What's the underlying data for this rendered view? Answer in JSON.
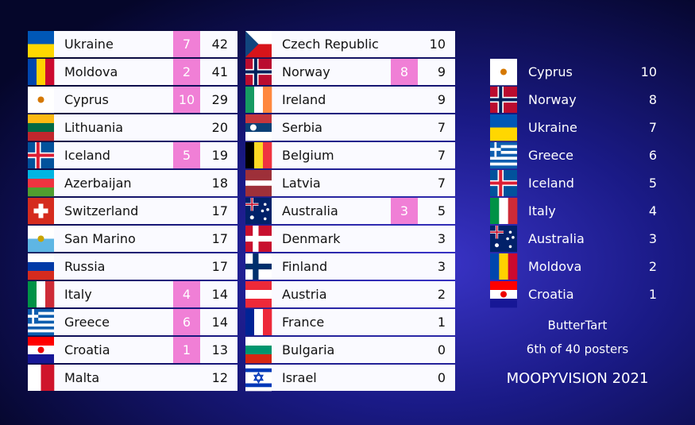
{
  "scoreboard": {
    "left": [
      {
        "country": "Ukraine",
        "points": 7,
        "total": 42
      },
      {
        "country": "Moldova",
        "points": 2,
        "total": 41
      },
      {
        "country": "Cyprus",
        "points": 10,
        "total": 29
      },
      {
        "country": "Lithuania",
        "points": null,
        "total": 20
      },
      {
        "country": "Iceland",
        "points": 5,
        "total": 19
      },
      {
        "country": "Azerbaijan",
        "points": null,
        "total": 18
      },
      {
        "country": "Switzerland",
        "points": null,
        "total": 17
      },
      {
        "country": "San Marino",
        "points": null,
        "total": 17
      },
      {
        "country": "Russia",
        "points": null,
        "total": 17
      },
      {
        "country": "Italy",
        "points": 4,
        "total": 14
      },
      {
        "country": "Greece",
        "points": 6,
        "total": 14
      },
      {
        "country": "Croatia",
        "points": 1,
        "total": 13
      },
      {
        "country": "Malta",
        "points": null,
        "total": 12
      }
    ],
    "middle": [
      {
        "country": "Czech Republic",
        "points": null,
        "total": 10
      },
      {
        "country": "Norway",
        "points": 8,
        "total": 9
      },
      {
        "country": "Ireland",
        "points": null,
        "total": 9
      },
      {
        "country": "Serbia",
        "points": null,
        "total": 7
      },
      {
        "country": "Belgium",
        "points": null,
        "total": 7
      },
      {
        "country": "Latvia",
        "points": null,
        "total": 7
      },
      {
        "country": "Australia",
        "points": 3,
        "total": 5
      },
      {
        "country": "Denmark",
        "points": null,
        "total": 3
      },
      {
        "country": "Finland",
        "points": null,
        "total": 3
      },
      {
        "country": "Austria",
        "points": null,
        "total": 2
      },
      {
        "country": "France",
        "points": null,
        "total": 1
      },
      {
        "country": "Bulgaria",
        "points": null,
        "total": 0
      },
      {
        "country": "Israel",
        "points": null,
        "total": 0
      }
    ],
    "votes": [
      {
        "country": "Cyprus",
        "points": 10
      },
      {
        "country": "Norway",
        "points": 8
      },
      {
        "country": "Ukraine",
        "points": 7
      },
      {
        "country": "Greece",
        "points": 6
      },
      {
        "country": "Iceland",
        "points": 5
      },
      {
        "country": "Italy",
        "points": 4
      },
      {
        "country": "Australia",
        "points": 3
      },
      {
        "country": "Moldova",
        "points": 2
      },
      {
        "country": "Croatia",
        "points": 1
      }
    ],
    "voter": "ButterTart",
    "rank_text": "6th of 40 posters",
    "show_title": "MOOPYVISION 2021"
  }
}
